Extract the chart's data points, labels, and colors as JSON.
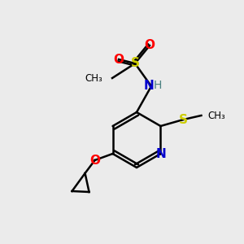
{
  "bg_color": "#ebebeb",
  "bond_color": "#000000",
  "colors": {
    "O": "#ff0000",
    "S": "#cccc00",
    "N": "#0000cd",
    "H": "#4a8080",
    "C": "#000000"
  },
  "figsize": [
    3.0,
    3.0
  ],
  "dpi": 100
}
